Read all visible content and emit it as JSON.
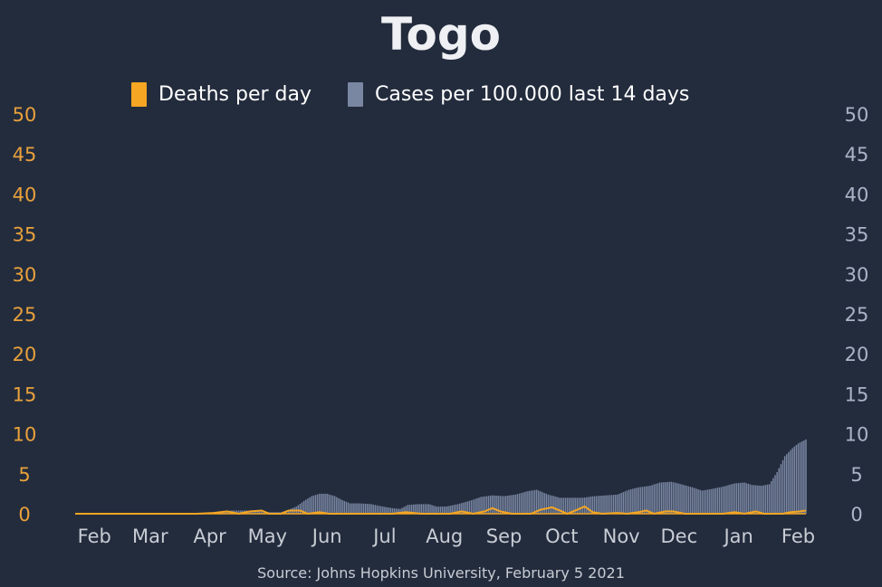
{
  "colors": {
    "background": "#232c3d",
    "deaths": "#f5a623",
    "cases": "#7a87a3",
    "left_axis": "#e9a13b",
    "right_axis": "#aab4c8",
    "month_labels": "#c8ccd4",
    "title": "#eef0f3",
    "legend_text": "#ffffff",
    "source": "#c8ccd4"
  },
  "chart_data": {
    "type": "bar",
    "title": "Togo",
    "source": "Source: Johns Hopkins University, February 5 2021",
    "legend": [
      {
        "name": "Deaths per day",
        "color": "#f5a623"
      },
      {
        "name": "Cases per 100.000 last 14 days",
        "color": "#7a87a3"
      }
    ],
    "legend_position": "top-center",
    "x_start": "2020-01-22",
    "x_end": "2021-02-05",
    "months": [
      {
        "label": "Feb",
        "date": "2020-02-01"
      },
      {
        "label": "Mar",
        "date": "2020-03-01"
      },
      {
        "label": "Apr",
        "date": "2020-04-01"
      },
      {
        "label": "May",
        "date": "2020-05-01"
      },
      {
        "label": "Jun",
        "date": "2020-06-01"
      },
      {
        "label": "Jul",
        "date": "2020-07-01"
      },
      {
        "label": "Aug",
        "date": "2020-08-01"
      },
      {
        "label": "Sep",
        "date": "2020-09-01"
      },
      {
        "label": "Oct",
        "date": "2020-10-01"
      },
      {
        "label": "Nov",
        "date": "2020-11-01"
      },
      {
        "label": "Dec",
        "date": "2020-12-01"
      },
      {
        "label": "Jan",
        "date": "2021-01-01"
      },
      {
        "label": "Feb",
        "date": "2021-02-01"
      }
    ],
    "y_left": {
      "min": 0,
      "max": 50,
      "ticks": [
        "0",
        "5",
        "10",
        "15",
        "20",
        "25",
        "30",
        "35",
        "40",
        "45",
        "50"
      ]
    },
    "y_right": {
      "min": 0,
      "max": 50,
      "ticks": [
        "0",
        "5",
        "10",
        "15",
        "20",
        "25",
        "30",
        "35",
        "40",
        "45",
        "50"
      ]
    },
    "grid": false,
    "series": [
      {
        "name": "Cases per 100.000 last 14 days",
        "type": "bar",
        "axis": "right",
        "points": [
          [
            "2020-01-22",
            0
          ],
          [
            "2020-03-20",
            0
          ],
          [
            "2020-03-28",
            0.1
          ],
          [
            "2020-04-05",
            0.2
          ],
          [
            "2020-04-12",
            0.4
          ],
          [
            "2020-04-20",
            0.4
          ],
          [
            "2020-04-25",
            0.3
          ],
          [
            "2020-05-02",
            0.2
          ],
          [
            "2020-05-08",
            0.2
          ],
          [
            "2020-05-12",
            0.5
          ],
          [
            "2020-05-16",
            0.9
          ],
          [
            "2020-05-20",
            1.6
          ],
          [
            "2020-05-24",
            2.2
          ],
          [
            "2020-05-28",
            2.5
          ],
          [
            "2020-06-01",
            2.5
          ],
          [
            "2020-06-05",
            2.2
          ],
          [
            "2020-06-09",
            1.7
          ],
          [
            "2020-06-13",
            1.3
          ],
          [
            "2020-06-18",
            1.3
          ],
          [
            "2020-06-24",
            1.2
          ],
          [
            "2020-06-30",
            0.9
          ],
          [
            "2020-07-05",
            0.7
          ],
          [
            "2020-07-09",
            0.6
          ],
          [
            "2020-07-13",
            1.1
          ],
          [
            "2020-07-18",
            1.2
          ],
          [
            "2020-07-24",
            1.2
          ],
          [
            "2020-07-28",
            0.9
          ],
          [
            "2020-08-02",
            0.9
          ],
          [
            "2020-08-08",
            1.2
          ],
          [
            "2020-08-14",
            1.6
          ],
          [
            "2020-08-20",
            2.1
          ],
          [
            "2020-08-26",
            2.3
          ],
          [
            "2020-09-01",
            2.2
          ],
          [
            "2020-09-07",
            2.4
          ],
          [
            "2020-09-13",
            2.8
          ],
          [
            "2020-09-18",
            3.0
          ],
          [
            "2020-09-24",
            2.4
          ],
          [
            "2020-09-30",
            2.0
          ],
          [
            "2020-10-06",
            2.0
          ],
          [
            "2020-10-12",
            2.0
          ],
          [
            "2020-10-18",
            2.2
          ],
          [
            "2020-10-24",
            2.3
          ],
          [
            "2020-10-30",
            2.4
          ],
          [
            "2020-11-05",
            3.0
          ],
          [
            "2020-11-10",
            3.3
          ],
          [
            "2020-11-16",
            3.5
          ],
          [
            "2020-11-21",
            3.9
          ],
          [
            "2020-11-27",
            4.0
          ],
          [
            "2020-12-02",
            3.7
          ],
          [
            "2020-12-08",
            3.3
          ],
          [
            "2020-12-13",
            2.9
          ],
          [
            "2020-12-18",
            3.1
          ],
          [
            "2020-12-24",
            3.4
          ],
          [
            "2020-12-30",
            3.8
          ],
          [
            "2021-01-04",
            3.9
          ],
          [
            "2021-01-08",
            3.6
          ],
          [
            "2021-01-13",
            3.5
          ],
          [
            "2021-01-17",
            3.7
          ],
          [
            "2021-01-21",
            5.2
          ],
          [
            "2021-01-25",
            7.2
          ],
          [
            "2021-01-29",
            8.2
          ],
          [
            "2021-02-01",
            8.8
          ],
          [
            "2021-02-05",
            9.3
          ]
        ]
      },
      {
        "name": "Deaths per day",
        "type": "line",
        "axis": "left",
        "points": [
          [
            "2020-01-22",
            0
          ],
          [
            "2020-03-25",
            0
          ],
          [
            "2020-04-03",
            0.1
          ],
          [
            "2020-04-10",
            0.3
          ],
          [
            "2020-04-16",
            0
          ],
          [
            "2020-04-22",
            0.3
          ],
          [
            "2020-04-28",
            0.4
          ],
          [
            "2020-05-02",
            0
          ],
          [
            "2020-05-08",
            0
          ],
          [
            "2020-05-12",
            0.4
          ],
          [
            "2020-05-18",
            0.4
          ],
          [
            "2020-05-22",
            0
          ],
          [
            "2020-05-28",
            0.2
          ],
          [
            "2020-06-02",
            0
          ],
          [
            "2020-06-20",
            0
          ],
          [
            "2020-07-05",
            0
          ],
          [
            "2020-07-12",
            0.2
          ],
          [
            "2020-07-20",
            0
          ],
          [
            "2020-08-04",
            0
          ],
          [
            "2020-08-10",
            0.3
          ],
          [
            "2020-08-16",
            0
          ],
          [
            "2020-08-22",
            0.3
          ],
          [
            "2020-08-26",
            0.7
          ],
          [
            "2020-08-30",
            0.3
          ],
          [
            "2020-09-05",
            0
          ],
          [
            "2020-09-15",
            0
          ],
          [
            "2020-09-20",
            0.5
          ],
          [
            "2020-09-26",
            0.8
          ],
          [
            "2020-09-30",
            0.4
          ],
          [
            "2020-10-04",
            0
          ],
          [
            "2020-10-10",
            0.6
          ],
          [
            "2020-10-13",
            0.9
          ],
          [
            "2020-10-17",
            0.2
          ],
          [
            "2020-10-22",
            0
          ],
          [
            "2020-10-30",
            0.1
          ],
          [
            "2020-11-04",
            0
          ],
          [
            "2020-11-10",
            0.2
          ],
          [
            "2020-11-14",
            0.4
          ],
          [
            "2020-11-18",
            0
          ],
          [
            "2020-11-24",
            0.3
          ],
          [
            "2020-11-28",
            0.3
          ],
          [
            "2020-12-04",
            0
          ],
          [
            "2020-12-16",
            0
          ],
          [
            "2020-12-24",
            0
          ],
          [
            "2020-12-30",
            0.2
          ],
          [
            "2021-01-04",
            0
          ],
          [
            "2021-01-10",
            0.3
          ],
          [
            "2021-01-14",
            0
          ],
          [
            "2021-01-24",
            0
          ],
          [
            "2021-01-28",
            0.2
          ],
          [
            "2021-02-02",
            0.3
          ],
          [
            "2021-02-05",
            0.4
          ]
        ]
      }
    ]
  }
}
